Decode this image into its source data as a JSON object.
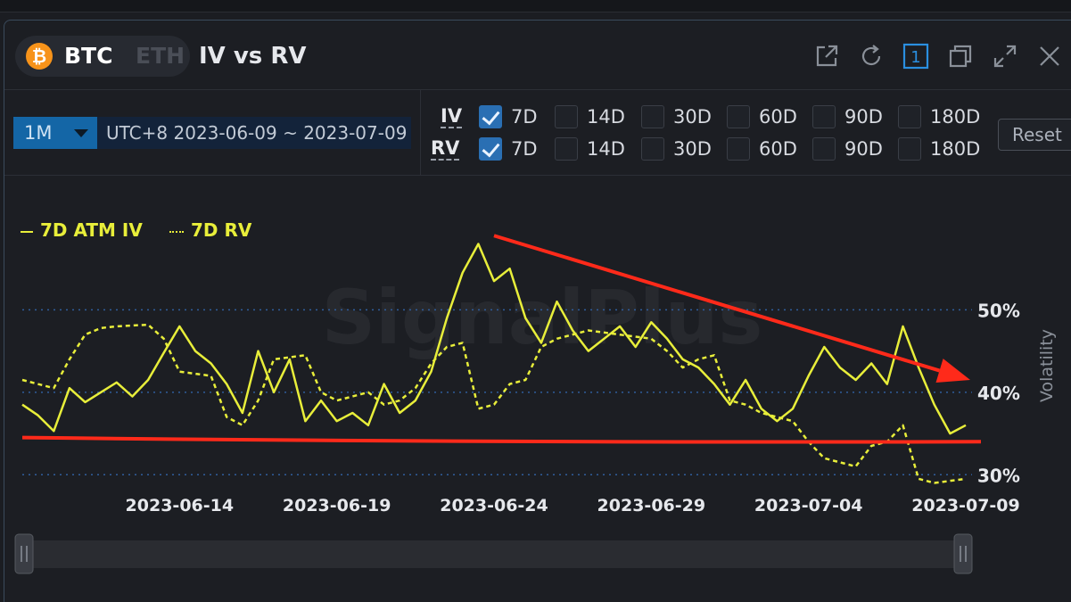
{
  "coins": {
    "active": "BTC",
    "inactive": "ETH",
    "active_logo": "₿"
  },
  "title": "IV vs RV",
  "header_icons": [
    "external-link-icon",
    "refresh-icon",
    "window-number-icon",
    "duplicate-icon",
    "expand-icon",
    "close-icon"
  ],
  "window_number": "1",
  "range": {
    "selected": "1M",
    "dates": "UTC+8 2023-06-09 ~ 2023-07-09"
  },
  "iv_row": {
    "label": "IV",
    "options": [
      {
        "label": "7D",
        "checked": true
      },
      {
        "label": "14D",
        "checked": false
      },
      {
        "label": "30D",
        "checked": false
      },
      {
        "label": "60D",
        "checked": false
      },
      {
        "label": "90D",
        "checked": false
      },
      {
        "label": "180D",
        "checked": false
      }
    ]
  },
  "rv_row": {
    "label": "RV",
    "options": [
      {
        "label": "7D",
        "checked": true
      },
      {
        "label": "14D",
        "checked": false
      },
      {
        "label": "30D",
        "checked": false
      },
      {
        "label": "60D",
        "checked": false
      },
      {
        "label": "90D",
        "checked": false
      },
      {
        "label": "180D",
        "checked": false
      }
    ]
  },
  "reset_label": "Reset",
  "watermark": "SignalPlus",
  "colors": {
    "series": "#e8ee3a",
    "accent": "#2a6fb3",
    "annotation": "#ff2a1a",
    "grid": "#2f5d9c"
  },
  "chart_data": {
    "type": "line",
    "ylabel": "Volatility",
    "y_ticks": [
      30,
      40,
      50
    ],
    "y_tick_labels": [
      "30%",
      "40%",
      "50%"
    ],
    "ylim": [
      27,
      60
    ],
    "x_tick_labels": [
      "2023-06-14",
      "2023-06-19",
      "2023-06-24",
      "2023-06-29",
      "2023-07-04",
      "2023-07-09"
    ],
    "x_range": [
      "2023-06-09",
      "2023-07-09"
    ],
    "grid": "horizontal dotted",
    "legend_position": "top-left",
    "series": [
      {
        "name": "7D ATM IV",
        "style": "solid",
        "points": [
          [
            "2023-06-09",
            38.5
          ],
          [
            "2023-06-09T12",
            37.2
          ],
          [
            "2023-06-10",
            35.3
          ],
          [
            "2023-06-10T12",
            40.5
          ],
          [
            "2023-06-11",
            38.8
          ],
          [
            "2023-06-11T12",
            40.0
          ],
          [
            "2023-06-12",
            41.2
          ],
          [
            "2023-06-12T12",
            39.5
          ],
          [
            "2023-06-13",
            41.5
          ],
          [
            "2023-06-13T12",
            44.8
          ],
          [
            "2023-06-14",
            48.0
          ],
          [
            "2023-06-14T12",
            45.0
          ],
          [
            "2023-06-15",
            43.5
          ],
          [
            "2023-06-15T12",
            41.0
          ],
          [
            "2023-06-16",
            37.5
          ],
          [
            "2023-06-16T12",
            45.0
          ],
          [
            "2023-06-17",
            40.0
          ],
          [
            "2023-06-17T12",
            44.0
          ],
          [
            "2023-06-18",
            36.5
          ],
          [
            "2023-06-18T12",
            39.0
          ],
          [
            "2023-06-19",
            36.5
          ],
          [
            "2023-06-19T12",
            37.5
          ],
          [
            "2023-06-20",
            36.0
          ],
          [
            "2023-06-20T12",
            41.0
          ],
          [
            "2023-06-21",
            37.5
          ],
          [
            "2023-06-21T12",
            39.0
          ],
          [
            "2023-06-22",
            42.5
          ],
          [
            "2023-06-22T12",
            49.0
          ],
          [
            "2023-06-23",
            54.5
          ],
          [
            "2023-06-23T12",
            58.0
          ],
          [
            "2023-06-24",
            53.5
          ],
          [
            "2023-06-24T12",
            55.0
          ],
          [
            "2023-06-25",
            49.0
          ],
          [
            "2023-06-25T12",
            46.0
          ],
          [
            "2023-06-26",
            51.0
          ],
          [
            "2023-06-26T12",
            47.5
          ],
          [
            "2023-06-27",
            45.0
          ],
          [
            "2023-06-27T12",
            46.5
          ],
          [
            "2023-06-28",
            48.0
          ],
          [
            "2023-06-28T12",
            45.5
          ],
          [
            "2023-06-29",
            48.5
          ],
          [
            "2023-06-29T12",
            46.5
          ],
          [
            "2023-06-30",
            44.0
          ],
          [
            "2023-06-30T12",
            43.0
          ],
          [
            "2023-07-01",
            41.0
          ],
          [
            "2023-07-01T12",
            38.5
          ],
          [
            "2023-07-02",
            41.5
          ],
          [
            "2023-07-02T12",
            38.0
          ],
          [
            "2023-07-03",
            36.5
          ],
          [
            "2023-07-03T12",
            38.0
          ],
          [
            "2023-07-04",
            42.0
          ],
          [
            "2023-07-04T12",
            45.5
          ],
          [
            "2023-07-05",
            43.0
          ],
          [
            "2023-07-05T12",
            41.5
          ],
          [
            "2023-07-06",
            43.5
          ],
          [
            "2023-07-06T12",
            41.0
          ],
          [
            "2023-07-07",
            48.0
          ],
          [
            "2023-07-07T12",
            43.0
          ],
          [
            "2023-07-08",
            38.5
          ],
          [
            "2023-07-08T12",
            35.0
          ],
          [
            "2023-07-09",
            36.0
          ]
        ]
      },
      {
        "name": "7D RV",
        "style": "dotted",
        "points": [
          [
            "2023-06-09",
            41.5
          ],
          [
            "2023-06-10",
            40.5
          ],
          [
            "2023-06-10T12",
            44.0
          ],
          [
            "2023-06-11",
            47.0
          ],
          [
            "2023-06-11T12",
            47.8
          ],
          [
            "2023-06-12",
            48.0
          ],
          [
            "2023-06-13",
            48.2
          ],
          [
            "2023-06-13T12",
            46.5
          ],
          [
            "2023-06-14",
            42.5
          ],
          [
            "2023-06-15",
            42.0
          ],
          [
            "2023-06-15T12",
            37.0
          ],
          [
            "2023-06-16",
            36.0
          ],
          [
            "2023-06-16T12",
            39.0
          ],
          [
            "2023-06-17",
            44.0
          ],
          [
            "2023-06-18",
            44.5
          ],
          [
            "2023-06-18T12",
            40.0
          ],
          [
            "2023-06-19",
            39.0
          ],
          [
            "2023-06-19T12",
            39.5
          ],
          [
            "2023-06-20",
            40.0
          ],
          [
            "2023-06-20T12",
            38.5
          ],
          [
            "2023-06-21",
            39.0
          ],
          [
            "2023-06-21T12",
            40.5
          ],
          [
            "2023-06-22",
            43.5
          ],
          [
            "2023-06-22T12",
            45.5
          ],
          [
            "2023-06-23",
            46.0
          ],
          [
            "2023-06-23T12",
            38.0
          ],
          [
            "2023-06-24",
            38.5
          ],
          [
            "2023-06-24T12",
            41.0
          ],
          [
            "2023-06-25",
            41.5
          ],
          [
            "2023-06-25T12",
            45.5
          ],
          [
            "2023-06-26",
            46.5
          ],
          [
            "2023-06-27",
            47.5
          ],
          [
            "2023-06-28",
            47.0
          ],
          [
            "2023-06-29",
            46.5
          ],
          [
            "2023-06-29T12",
            45.0
          ],
          [
            "2023-06-30",
            43.0
          ],
          [
            "2023-06-30T12",
            44.0
          ],
          [
            "2023-07-01",
            44.5
          ],
          [
            "2023-07-01T12",
            39.0
          ],
          [
            "2023-07-02",
            38.5
          ],
          [
            "2023-07-02T12",
            37.5
          ],
          [
            "2023-07-03",
            37.0
          ],
          [
            "2023-07-03T12",
            36.5
          ],
          [
            "2023-07-04",
            34.0
          ],
          [
            "2023-07-04T12",
            32.0
          ],
          [
            "2023-07-05",
            31.5
          ],
          [
            "2023-07-05T12",
            31.0
          ],
          [
            "2023-07-06",
            33.5
          ],
          [
            "2023-07-06T12",
            34.0
          ],
          [
            "2023-07-07",
            36.0
          ],
          [
            "2023-07-07T12",
            29.5
          ],
          [
            "2023-07-08",
            29.0
          ],
          [
            "2023-07-09",
            29.5
          ]
        ]
      }
    ],
    "annotations": [
      {
        "type": "horizontal-line",
        "color": "#ff2a1a",
        "from": [
          "2023-06-09",
          34.5
        ],
        "to": [
          "2023-07-09",
          34.0
        ]
      },
      {
        "type": "arrow",
        "color": "#ff2a1a",
        "from": [
          "2023-06-24",
          59.0
        ],
        "to": [
          "2023-07-09",
          41.5
        ]
      }
    ]
  }
}
